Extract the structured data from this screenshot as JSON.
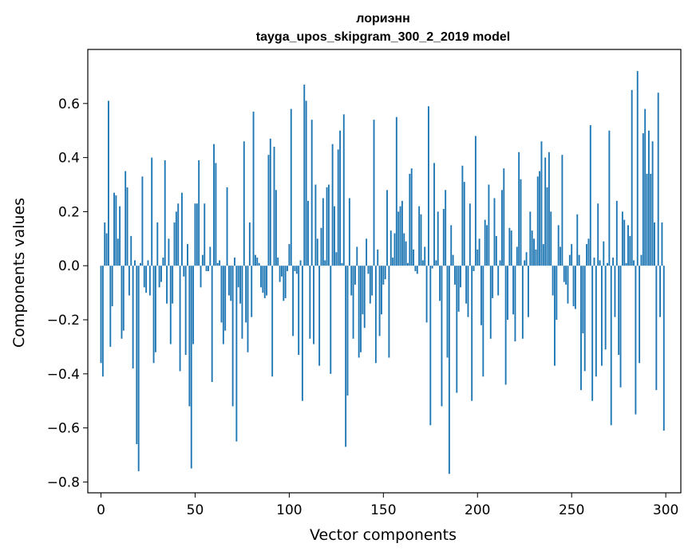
{
  "chart_data": {
    "type": "bar",
    "title": "лориэнн",
    "subtitle": "tayga_upos_skipgram_300_2_2019 model",
    "xlabel": "Vector components",
    "ylabel": "Components values",
    "xlim": [
      -7,
      308
    ],
    "ylim": [
      -0.84,
      0.8
    ],
    "xticks": [
      0,
      50,
      100,
      150,
      200,
      250,
      300
    ],
    "xtick_labels": [
      "0",
      "50",
      "100",
      "150",
      "200",
      "250",
      "300"
    ],
    "yticks": [
      -0.8,
      -0.6,
      -0.4,
      -0.2,
      0.0,
      0.2,
      0.4,
      0.6
    ],
    "ytick_labels": [
      "−0.8",
      "−0.6",
      "−0.4",
      "−0.2",
      "0.0",
      "0.2",
      "0.4",
      "0.6"
    ],
    "grid": false,
    "bar_color": "#1f77b4",
    "x": [
      0,
      1,
      2,
      3,
      4,
      5,
      6,
      7,
      8,
      9,
      10,
      11,
      12,
      13,
      14,
      15,
      16,
      17,
      18,
      19,
      20,
      21,
      22,
      23,
      24,
      25,
      26,
      27,
      28,
      29,
      30,
      31,
      32,
      33,
      34,
      35,
      36,
      37,
      38,
      39,
      40,
      41,
      42,
      43,
      44,
      45,
      46,
      47,
      48,
      49,
      50,
      51,
      52,
      53,
      54,
      55,
      56,
      57,
      58,
      59,
      60,
      61,
      62,
      63,
      64,
      65,
      66,
      67,
      68,
      69,
      70,
      71,
      72,
      73,
      74,
      75,
      76,
      77,
      78,
      79,
      80,
      81,
      82,
      83,
      84,
      85,
      86,
      87,
      88,
      89,
      90,
      91,
      92,
      93,
      94,
      95,
      96,
      97,
      98,
      99,
      100,
      101,
      102,
      103,
      104,
      105,
      106,
      107,
      108,
      109,
      110,
      111,
      112,
      113,
      114,
      115,
      116,
      117,
      118,
      119,
      120,
      121,
      122,
      123,
      124,
      125,
      126,
      127,
      128,
      129,
      130,
      131,
      132,
      133,
      134,
      135,
      136,
      137,
      138,
      139,
      140,
      141,
      142,
      143,
      144,
      145,
      146,
      147,
      148,
      149,
      150,
      151,
      152,
      153,
      154,
      155,
      156,
      157,
      158,
      159,
      160,
      161,
      162,
      163,
      164,
      165,
      166,
      167,
      168,
      169,
      170,
      171,
      172,
      173,
      174,
      175,
      176,
      177,
      178,
      179,
      180,
      181,
      182,
      183,
      184,
      185,
      186,
      187,
      188,
      189,
      190,
      191,
      192,
      193,
      194,
      195,
      196,
      197,
      198,
      199,
      200,
      201,
      202,
      203,
      204,
      205,
      206,
      207,
      208,
      209,
      210,
      211,
      212,
      213,
      214,
      215,
      216,
      217,
      218,
      219,
      220,
      221,
      222,
      223,
      224,
      225,
      226,
      227,
      228,
      229,
      230,
      231,
      232,
      233,
      234,
      235,
      236,
      237,
      238,
      239,
      240,
      241,
      242,
      243,
      244,
      245,
      246,
      247,
      248,
      249,
      250,
      251,
      252,
      253,
      254,
      255,
      256,
      257,
      258,
      259,
      260,
      261,
      262,
      263,
      264,
      265,
      266,
      267,
      268,
      269,
      270,
      271,
      272,
      273,
      274,
      275,
      276,
      277,
      278,
      279,
      280,
      281,
      282,
      283,
      284,
      285,
      286,
      287,
      288,
      289,
      290,
      291,
      292,
      293,
      294,
      295,
      296,
      297,
      298,
      299
    ],
    "values": [
      -0.36,
      -0.41,
      0.16,
      0.12,
      0.61,
      -0.3,
      -0.15,
      0.27,
      0.26,
      0.1,
      0.22,
      -0.27,
      -0.24,
      0.35,
      0.29,
      -0.11,
      0.11,
      -0.38,
      0.02,
      -0.66,
      -0.76,
      0.01,
      0.33,
      -0.08,
      -0.1,
      0.02,
      -0.11,
      0.4,
      -0.36,
      -0.32,
      0.16,
      -0.08,
      -0.06,
      0.03,
      0.39,
      -0.14,
      0.1,
      -0.29,
      -0.14,
      0.16,
      0.2,
      0.23,
      -0.39,
      0.27,
      -0.04,
      -0.33,
      0.08,
      -0.52,
      -0.75,
      -0.29,
      0.23,
      0.23,
      0.39,
      -0.08,
      0.04,
      0.23,
      -0.02,
      -0.02,
      0.07,
      -0.43,
      0.45,
      0.38,
      0.01,
      0.02,
      -0.21,
      -0.29,
      -0.24,
      0.29,
      -0.11,
      -0.13,
      -0.52,
      0.03,
      -0.65,
      -0.08,
      -0.14,
      -0.27,
      0.46,
      -0.21,
      -0.32,
      0.16,
      -0.19,
      0.57,
      0.04,
      0.03,
      0.01,
      -0.08,
      -0.1,
      -0.12,
      -0.11,
      0.41,
      0.47,
      -0.41,
      0.44,
      0.28,
      0.03,
      -0.06,
      -0.04,
      -0.13,
      -0.12,
      -0.02,
      0.08,
      0.58,
      -0.26,
      -0.02,
      -0.03,
      -0.33,
      0.02,
      -0.5,
      0.67,
      0.61,
      0.24,
      -0.27,
      0.54,
      -0.29,
      0.3,
      0.1,
      -0.37,
      0.14,
      0.25,
      0.02,
      0.29,
      0.3,
      -0.4,
      0.45,
      0.22,
      0.05,
      0.43,
      0.5,
      0.01,
      0.56,
      -0.67,
      -0.48,
      0.25,
      -0.11,
      -0.27,
      -0.07,
      0.07,
      -0.34,
      -0.32,
      -0.18,
      -0.23,
      0.1,
      -0.03,
      -0.14,
      -0.11,
      0.54,
      -0.36,
      0.06,
      -0.26,
      -0.18,
      -0.07,
      -0.05,
      0.28,
      -0.34,
      0.13,
      0.03,
      0.12,
      0.55,
      0.2,
      0.22,
      0.24,
      0.12,
      0.09,
      0.01,
      0.34,
      0.36,
      0.06,
      -0.02,
      -0.03,
      0.22,
      0.19,
      0.02,
      0.07,
      -0.21,
      0.59,
      -0.59,
      -0.01,
      0.38,
      0.02,
      0.2,
      -0.13,
      -0.52,
      0.21,
      0.28,
      -0.34,
      -0.77,
      0.15,
      0.04,
      -0.07,
      -0.47,
      -0.17,
      -0.08,
      0.37,
      0.31,
      -0.14,
      -0.19,
      0.23,
      -0.5,
      -0.02,
      0.48,
      0.06,
      0.1,
      -0.22,
      -0.41,
      0.17,
      0.15,
      0.3,
      -0.27,
      -0.12,
      0.25,
      0.11,
      -0.11,
      0.02,
      0.28,
      0.36,
      -0.44,
      -0.2,
      0.14,
      0.13,
      -0.18,
      -0.28,
      0.07,
      0.42,
      0.32,
      -0.27,
      0.02,
      0.05,
      -0.19,
      0.2,
      0.13,
      0.1,
      0.06,
      0.33,
      0.35,
      0.46,
      0.08,
      0.4,
      0.29,
      0.42,
      0.2,
      -0.11,
      -0.37,
      -0.2,
      0.15,
      0.07,
      0.41,
      -0.06,
      -0.07,
      -0.14,
      0.04,
      0.08,
      -0.15,
      -0.16,
      0.19,
      0.04,
      -0.46,
      -0.25,
      -0.39,
      0.08,
      0.1,
      0.52,
      -0.5,
      0.03,
      -0.41,
      0.23,
      0.02,
      -0.37,
      0.09,
      -0.31,
      0.01,
      0.5,
      -0.59,
      0.03,
      -0.19,
      0.24,
      -0.33,
      -0.45,
      0.2,
      0.17,
      0.01,
      0.15,
      0.11,
      0.65,
      0.02,
      -0.55,
      0.72,
      -0.36,
      0.04,
      0.49,
      0.58,
      0.34,
      0.5,
      0.34,
      0.46,
      0.16,
      -0.46,
      0.64,
      -0.19,
      0.16,
      -0.61
    ]
  }
}
